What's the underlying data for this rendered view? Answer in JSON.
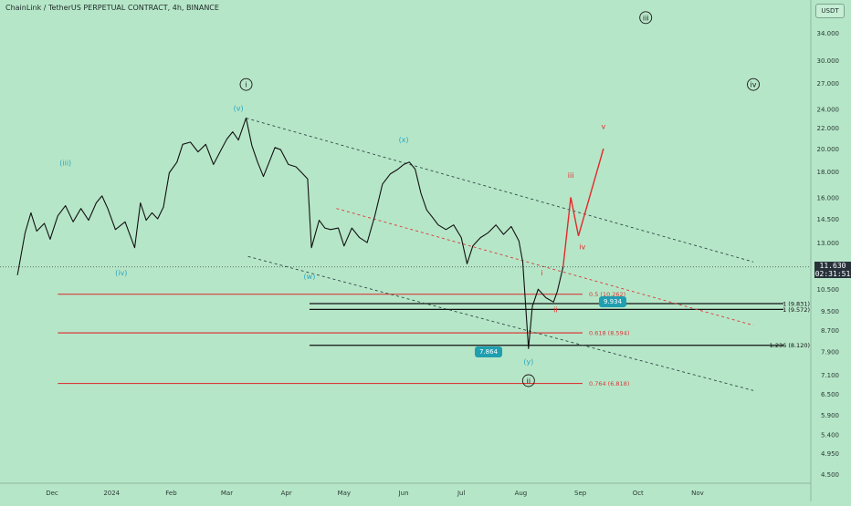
{
  "title": "ChainLink / TetherUS PERPETUAL CONTRACT, 4h, BINANCE",
  "currency_badge": "USDT",
  "last_price": "11.630",
  "countdown": "02:31:51",
  "box_labels": {
    "left": "7.864",
    "right": "9.934"
  },
  "colors": {
    "background": "#b6e6c8",
    "price_line": "#111111",
    "fib_red": "#d93b3b",
    "fib_black": "#111111",
    "wave_teal": "#2aa6c0",
    "projection": "#e32a2a",
    "channel": "#2d4a45"
  },
  "chart_data": {
    "type": "line",
    "title": "ChainLink / TetherUS PERPETUAL CONTRACT, 4h, BINANCE",
    "xlabel": "",
    "ylabel": "",
    "y_scale": "log",
    "ylim": [
      4.3,
      38.0
    ],
    "x_tick_labels": [
      "Dec",
      "2024",
      "Feb",
      "Mar",
      "Apr",
      "May",
      "Jun",
      "Jul",
      "Aug",
      "Sep",
      "Oct",
      "Nov"
    ],
    "x_ticks": [
      "2023-12-01",
      "2024-01-01",
      "2024-02-01",
      "2024-03-01",
      "2024-04-01",
      "2024-05-01",
      "2024-06-01",
      "2024-07-01",
      "2024-08-01",
      "2024-09-01",
      "2024-10-01",
      "2024-11-01"
    ],
    "y_ticks": [
      34.0,
      30.0,
      27.0,
      24.0,
      22.0,
      20.0,
      18.0,
      16.0,
      14.5,
      13.0,
      11.5,
      10.5,
      9.5,
      8.7,
      7.9,
      7.1,
      6.5,
      5.9,
      5.4,
      4.95,
      4.5
    ],
    "y_tick_labels": [
      "34.000",
      "30.000",
      "27.000",
      "24.000",
      "22.000",
      "20.000",
      "18.000",
      "16.000",
      "14.500",
      "13.000",
      "11.500",
      "10.500",
      "9.500",
      "8.700",
      "7.900",
      "7.100",
      "6.500",
      "5.900",
      "5.400",
      "4.950",
      "4.500"
    ],
    "series": [
      {
        "values": [
          [
            "2023-11-13",
            11.2
          ],
          [
            "2023-11-17",
            13.6
          ],
          [
            "2023-11-20",
            14.9
          ],
          [
            "2023-11-23",
            13.7
          ],
          [
            "2023-11-27",
            14.2
          ],
          [
            "2023-11-30",
            13.2
          ],
          [
            "2023-12-04",
            14.7
          ],
          [
            "2023-12-08",
            15.4
          ],
          [
            "2023-12-12",
            14.3
          ],
          [
            "2023-12-16",
            15.2
          ],
          [
            "2023-12-20",
            14.4
          ],
          [
            "2023-12-24",
            15.6
          ],
          [
            "2023-12-27",
            16.1
          ],
          [
            "2023-12-30",
            15.2
          ],
          [
            "2024-01-03",
            13.8
          ],
          [
            "2024-01-08",
            14.3
          ],
          [
            "2024-01-13",
            12.7
          ],
          [
            "2024-01-16",
            15.6
          ],
          [
            "2024-01-19",
            14.4
          ],
          [
            "2024-01-22",
            14.9
          ],
          [
            "2024-01-25",
            14.5
          ],
          [
            "2024-01-28",
            15.3
          ],
          [
            "2024-01-31",
            17.9
          ],
          [
            "2024-02-04",
            18.8
          ],
          [
            "2024-02-07",
            20.4
          ],
          [
            "2024-02-11",
            20.6
          ],
          [
            "2024-02-15",
            19.7
          ],
          [
            "2024-02-19",
            20.4
          ],
          [
            "2024-02-23",
            18.6
          ],
          [
            "2024-02-27",
            19.9
          ],
          [
            "2024-03-01",
            20.9
          ],
          [
            "2024-03-04",
            21.6
          ],
          [
            "2024-03-07",
            20.8
          ],
          [
            "2024-03-11",
            23.0
          ],
          [
            "2024-03-14",
            20.3
          ],
          [
            "2024-03-17",
            18.8
          ],
          [
            "2024-03-20",
            17.6
          ],
          [
            "2024-03-23",
            18.8
          ],
          [
            "2024-03-26",
            20.1
          ],
          [
            "2024-03-29",
            19.9
          ],
          [
            "2024-04-02",
            18.6
          ],
          [
            "2024-04-06",
            18.4
          ],
          [
            "2024-04-09",
            17.9
          ],
          [
            "2024-04-12",
            17.4
          ],
          [
            "2024-04-14",
            12.7
          ],
          [
            "2024-04-18",
            14.4
          ],
          [
            "2024-04-21",
            13.9
          ],
          [
            "2024-04-24",
            13.8
          ],
          [
            "2024-04-28",
            13.9
          ],
          [
            "2024-05-01",
            12.8
          ],
          [
            "2024-05-05",
            13.9
          ],
          [
            "2024-05-09",
            13.3
          ],
          [
            "2024-05-13",
            13.0
          ],
          [
            "2024-05-17",
            14.7
          ],
          [
            "2024-05-21",
            17.0
          ],
          [
            "2024-05-25",
            17.8
          ],
          [
            "2024-05-29",
            18.2
          ],
          [
            "2024-06-01",
            18.6
          ],
          [
            "2024-06-04",
            18.8
          ],
          [
            "2024-06-07",
            18.2
          ],
          [
            "2024-06-10",
            16.3
          ],
          [
            "2024-06-13",
            15.1
          ],
          [
            "2024-06-16",
            14.6
          ],
          [
            "2024-06-19",
            14.1
          ],
          [
            "2024-06-23",
            13.8
          ],
          [
            "2024-06-27",
            14.1
          ],
          [
            "2024-07-01",
            13.3
          ],
          [
            "2024-07-04",
            11.8
          ],
          [
            "2024-07-07",
            12.8
          ],
          [
            "2024-07-11",
            13.3
          ],
          [
            "2024-07-15",
            13.6
          ],
          [
            "2024-07-19",
            14.1
          ],
          [
            "2024-07-23",
            13.5
          ],
          [
            "2024-07-27",
            14.0
          ],
          [
            "2024-07-31",
            13.1
          ],
          [
            "2024-08-02",
            11.9
          ],
          [
            "2024-08-05",
            8.0
          ],
          [
            "2024-08-07",
            9.7
          ],
          [
            "2024-08-10",
            10.5
          ],
          [
            "2024-08-14",
            10.1
          ],
          [
            "2024-08-18",
            9.9
          ],
          [
            "2024-08-20",
            10.4
          ],
          [
            "2024-08-23",
            11.63
          ]
        ]
      }
    ],
    "wave_labels": [
      {
        "text": "i",
        "date": "2024-03-11",
        "price": 26.5,
        "circled": true
      },
      {
        "text": "ii",
        "date": "2024-08-05",
        "price": 6.82,
        "circled": true
      },
      {
        "text": "iii",
        "date": "2024-10-05",
        "price": 36.0,
        "circled": true
      },
      {
        "text": "iv",
        "date": "2024-11-30",
        "price": 26.5,
        "circled": true
      },
      {
        "text": "(iii)",
        "date": "2023-12-08",
        "price": 18.5
      },
      {
        "text": "(iv)",
        "date": "2024-01-06",
        "price": 11.2
      },
      {
        "text": "(v)",
        "date": "2024-03-07",
        "price": 23.8
      },
      {
        "text": "(w)",
        "date": "2024-04-13",
        "price": 11.0
      },
      {
        "text": "(x)",
        "date": "2024-06-01",
        "price": 20.6
      },
      {
        "text": "(y)",
        "date": "2024-08-05",
        "price": 7.45
      }
    ],
    "projection_labels": [
      {
        "text": "i",
        "date": "2024-08-12",
        "price": 11.2
      },
      {
        "text": "ii",
        "date": "2024-08-19",
        "price": 9.45
      },
      {
        "text": "iii",
        "date": "2024-08-27",
        "price": 17.5
      },
      {
        "text": "iv",
        "date": "2024-09-02",
        "price": 12.6
      },
      {
        "text": "v",
        "date": "2024-09-13",
        "price": 21.9
      }
    ],
    "projection_path": [
      [
        "2024-08-23",
        11.63
      ],
      [
        "2024-08-27",
        16.0
      ],
      [
        "2024-08-31",
        13.4
      ],
      [
        "2024-09-13",
        20.0
      ]
    ],
    "fib_levels": [
      {
        "label": "0.5 (10.262)",
        "value": 10.262,
        "color": "red",
        "from": "2023-12-04"
      },
      {
        "label": "0.618 (8.594)",
        "value": 8.594,
        "color": "red",
        "from": "2023-12-04"
      },
      {
        "label": "0.764 (6.818)",
        "value": 6.818,
        "color": "red",
        "from": "2023-12-04"
      },
      {
        "label": "1 (9.831)",
        "value": 9.831,
        "color": "black",
        "from": "2024-04-13"
      },
      {
        "label": "1 (9.572)",
        "value": 9.572,
        "color": "black",
        "from": "2024-04-13"
      },
      {
        "label": "1.236 (8.120)",
        "value": 8.12,
        "color": "black",
        "from": "2024-04-13"
      }
    ],
    "channel_lines": [
      {
        "style": "dashed-dark",
        "points": [
          [
            "2024-03-11",
            23.0
          ],
          [
            "2024-11-30",
            11.9
          ]
        ]
      },
      {
        "style": "dashed-dark",
        "points": [
          [
            "2024-03-12",
            12.2
          ],
          [
            "2024-11-30",
            6.6
          ]
        ]
      },
      {
        "style": "dashed-red",
        "points": [
          [
            "2024-04-27",
            15.2
          ],
          [
            "2024-11-30",
            8.9
          ]
        ]
      }
    ]
  }
}
